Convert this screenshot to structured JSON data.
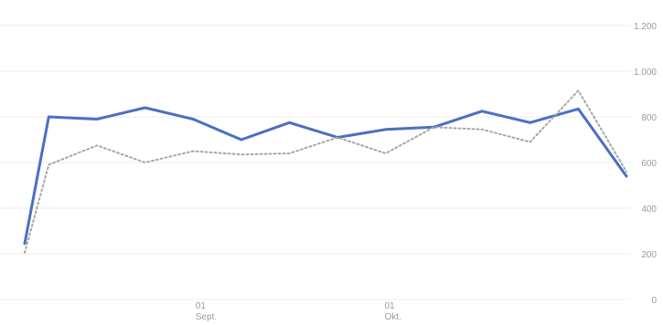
{
  "chart_data": {
    "type": "line",
    "title": "",
    "xlabel": "",
    "ylabel": "",
    "ylim": [
      0,
      1200
    ],
    "y_ticks": [
      {
        "value": 0,
        "label": "0"
      },
      {
        "value": 200,
        "label": "200"
      },
      {
        "value": 400,
        "label": "400"
      },
      {
        "value": 600,
        "label": "600"
      },
      {
        "value": 800,
        "label": "800"
      },
      {
        "value": 1000,
        "label": "1.000"
      },
      {
        "value": 1200,
        "label": "1.200"
      }
    ],
    "x_ticks": [
      {
        "index": 7.1,
        "label_day": "01",
        "label_month": "Sept."
      },
      {
        "index": 14.95,
        "label_day": "01",
        "label_month": "Okt."
      }
    ],
    "grid": true,
    "legend": "none",
    "series": [
      {
        "style": "solid",
        "color": "#4a6fc3",
        "values": [
          245,
          800,
          790,
          840,
          790,
          700,
          775,
          710,
          745,
          755,
          825,
          775,
          835,
          540
        ]
      },
      {
        "style": "dotted",
        "color": "#a7a7a7",
        "values": [
          205,
          590,
          675,
          600,
          650,
          635,
          640,
          710,
          640,
          755,
          745,
          690,
          915,
          560
        ]
      }
    ],
    "x_positions": [
      0,
      1,
      3,
      5,
      7,
      9,
      11,
      13,
      15,
      17,
      19,
      21,
      23,
      25
    ]
  }
}
